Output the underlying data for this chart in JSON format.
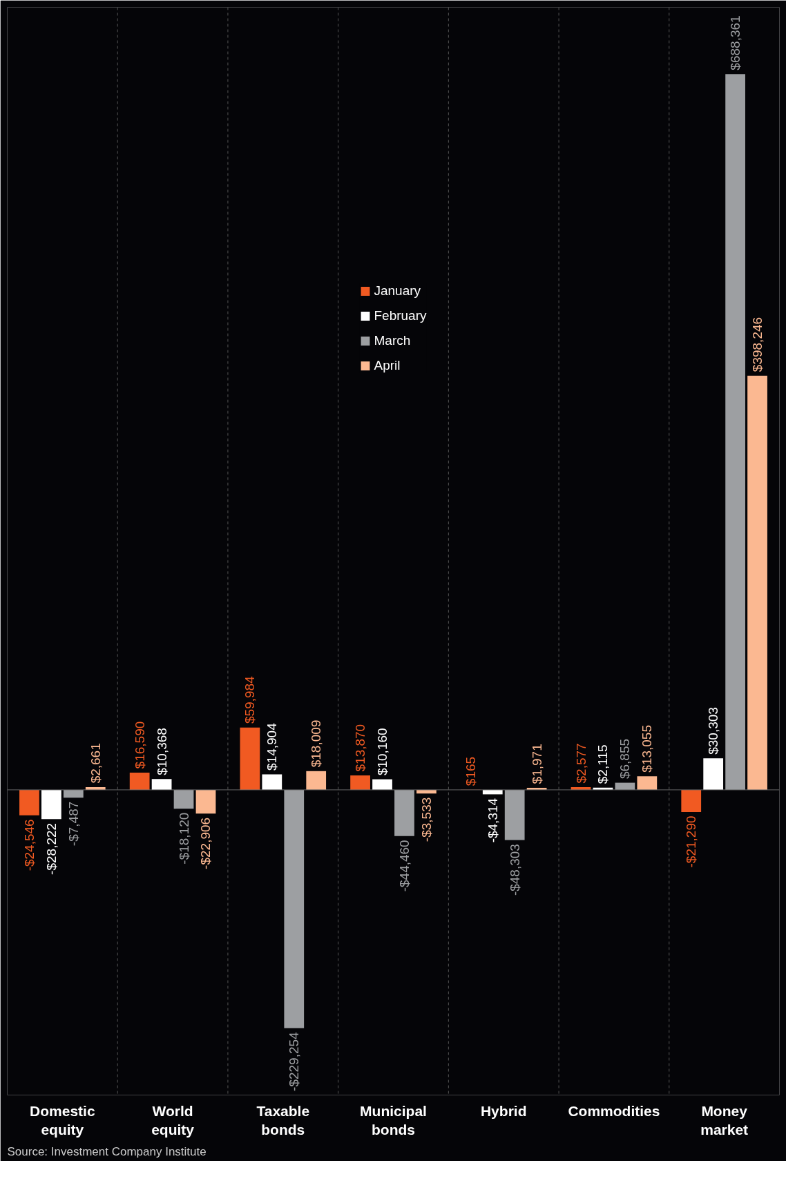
{
  "chart_data": {
    "type": "bar",
    "categories": [
      "Domestic equity",
      "World equity",
      "Taxable bonds",
      "Municipal bonds",
      "Hybrid",
      "Commodities",
      "Money market"
    ],
    "series": [
      {
        "name": "January",
        "color": "#f15a22",
        "values": [
          -24546,
          16590,
          59984,
          13870,
          165,
          2577,
          -21290
        ],
        "value_labels": [
          "-$24,546",
          "$16,590",
          "$59,984",
          "$13,870",
          "$165",
          "$2,577",
          "-$21,290"
        ]
      },
      {
        "name": "February",
        "color": "#ffffff",
        "values": [
          -28222,
          10368,
          14904,
          10160,
          -4314,
          2115,
          30303
        ],
        "value_labels": [
          "-$28,222",
          "$10,368",
          "$14,904",
          "$10,160",
          "-$4,314",
          "$2,115",
          "$30,303"
        ]
      },
      {
        "name": "March",
        "color": "#9d9fa2",
        "values": [
          -7487,
          -18120,
          -229254,
          -44460,
          -48303,
          6855,
          688361
        ],
        "value_labels": [
          "-$7,487",
          "-$18,120",
          "-$229,254",
          "-$44,460",
          "-$48,303",
          "$6,855",
          "$688,361"
        ]
      },
      {
        "name": "April",
        "color": "#fbb891",
        "values": [
          2661,
          -22906,
          18009,
          -3533,
          1971,
          13055,
          398246
        ],
        "value_labels": [
          "$2,661",
          "-$22,906",
          "$18,009",
          "-$3,533",
          "$1,971",
          "$13,055",
          "$398,246"
        ]
      }
    ],
    "legend": "top",
    "grid": "x",
    "annotations": [
      "Source: Investment Company Institute"
    ]
  }
}
